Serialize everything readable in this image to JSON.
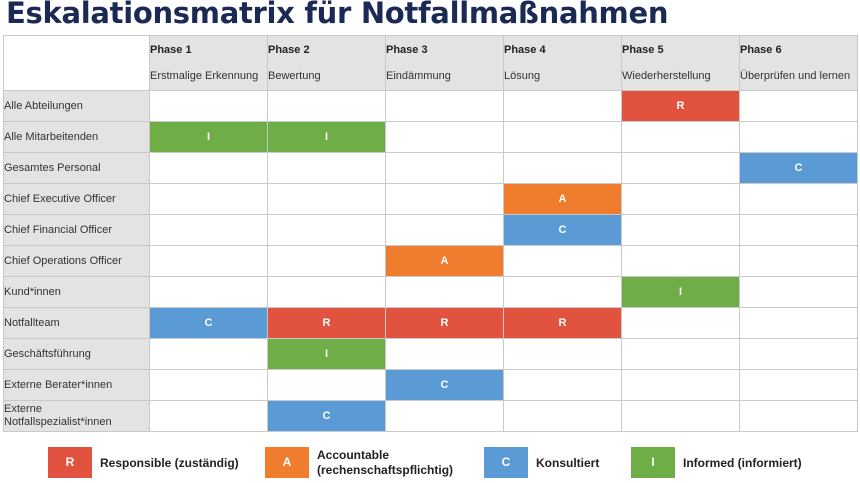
{
  "title": "Eskalationsmatrix für Notfallmaßnahmen",
  "colors": {
    "R": "#e2533f",
    "A": "#ef7d2d",
    "C": "#5b9bd5",
    "I": "#6fad47",
    "title": "#1b2a55"
  },
  "phases": [
    {
      "num": "Phase 1",
      "name": "Erstmalige Erkennung"
    },
    {
      "num": "Phase 2",
      "name": "Bewertung"
    },
    {
      "num": "Phase 3",
      "name": "Eindämmung"
    },
    {
      "num": "Phase 4",
      "name": "Lösung"
    },
    {
      "num": "Phase 5",
      "name": "Wiederherstellung"
    },
    {
      "num": "Phase 6",
      "name": "Überprüfen und lernen"
    }
  ],
  "rows": [
    {
      "label": "Alle Abteilungen",
      "cells": [
        "",
        "",
        "",
        "",
        "R",
        ""
      ]
    },
    {
      "label": "Alle Mitarbeitenden",
      "cells": [
        "I",
        "I",
        "",
        "",
        "",
        ""
      ]
    },
    {
      "label": "Gesamtes Personal",
      "cells": [
        "",
        "",
        "",
        "",
        "",
        "C"
      ]
    },
    {
      "label": "Chief Executive Officer",
      "cells": [
        "",
        "",
        "",
        "A",
        "",
        ""
      ]
    },
    {
      "label": "Chief Financial Officer",
      "cells": [
        "",
        "",
        "",
        "C",
        "",
        ""
      ]
    },
    {
      "label": "Chief Operations Officer",
      "cells": [
        "",
        "",
        "A",
        "",
        "",
        ""
      ]
    },
    {
      "label": "Kund*innen",
      "cells": [
        "",
        "",
        "",
        "",
        "I",
        ""
      ]
    },
    {
      "label": "Notfallteam",
      "cells": [
        "C",
        "R",
        "R",
        "R",
        "",
        ""
      ]
    },
    {
      "label": "Geschäftsführung",
      "cells": [
        "",
        "I",
        "",
        "",
        "",
        ""
      ]
    },
    {
      "label": "Externe Berater*innen",
      "cells": [
        "",
        "",
        "C",
        "",
        "",
        ""
      ]
    },
    {
      "label": "Externe Notfallspezialist*innen",
      "cells": [
        "",
        "C",
        "",
        "",
        "",
        ""
      ]
    }
  ],
  "legend": [
    {
      "key": "R",
      "text": "Responsible (zuständig)"
    },
    {
      "key": "A",
      "text": "Accountable (rechenschaftspflichtig)"
    },
    {
      "key": "C",
      "text": "Konsultiert"
    },
    {
      "key": "I",
      "text": "Informed (informiert)"
    }
  ]
}
